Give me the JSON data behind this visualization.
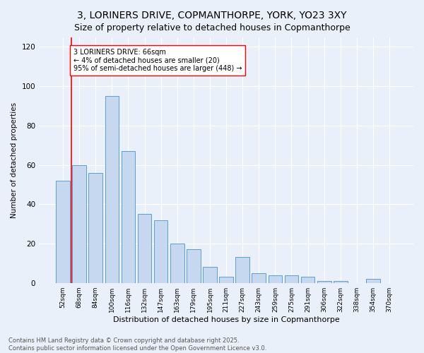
{
  "title1": "3, LORINERS DRIVE, COPMANTHORPE, YORK, YO23 3XY",
  "title2": "Size of property relative to detached houses in Copmanthorpe",
  "xlabel": "Distribution of detached houses by size in Copmanthorpe",
  "ylabel": "Number of detached properties",
  "categories": [
    "52sqm",
    "68sqm",
    "84sqm",
    "100sqm",
    "116sqm",
    "132sqm",
    "147sqm",
    "163sqm",
    "179sqm",
    "195sqm",
    "211sqm",
    "227sqm",
    "243sqm",
    "259sqm",
    "275sqm",
    "291sqm",
    "306sqm",
    "322sqm",
    "338sqm",
    "354sqm",
    "370sqm"
  ],
  "values": [
    52,
    60,
    56,
    95,
    67,
    35,
    32,
    20,
    17,
    8,
    3,
    13,
    5,
    4,
    4,
    3,
    1,
    1,
    0,
    2,
    0
  ],
  "bar_color": "#c5d8f0",
  "bar_edge_color": "#5a9fd4",
  "annotation_text_line1": "3 LORINERS DRIVE: 66sqm",
  "annotation_text_line2": "← 4% of detached houses are smaller (20)",
  "annotation_text_line3": "95% of semi-detached houses are larger (448) →",
  "ylim": [
    0,
    125
  ],
  "yticks": [
    0,
    20,
    40,
    60,
    80,
    100,
    120
  ],
  "footer1": "Contains HM Land Registry data © Crown copyright and database right 2025.",
  "footer2": "Contains public sector information licensed under the Open Government Licence v3.0.",
  "bg_color": "#eaf0f9",
  "title_fontsize": 10,
  "subtitle_fontsize": 9
}
